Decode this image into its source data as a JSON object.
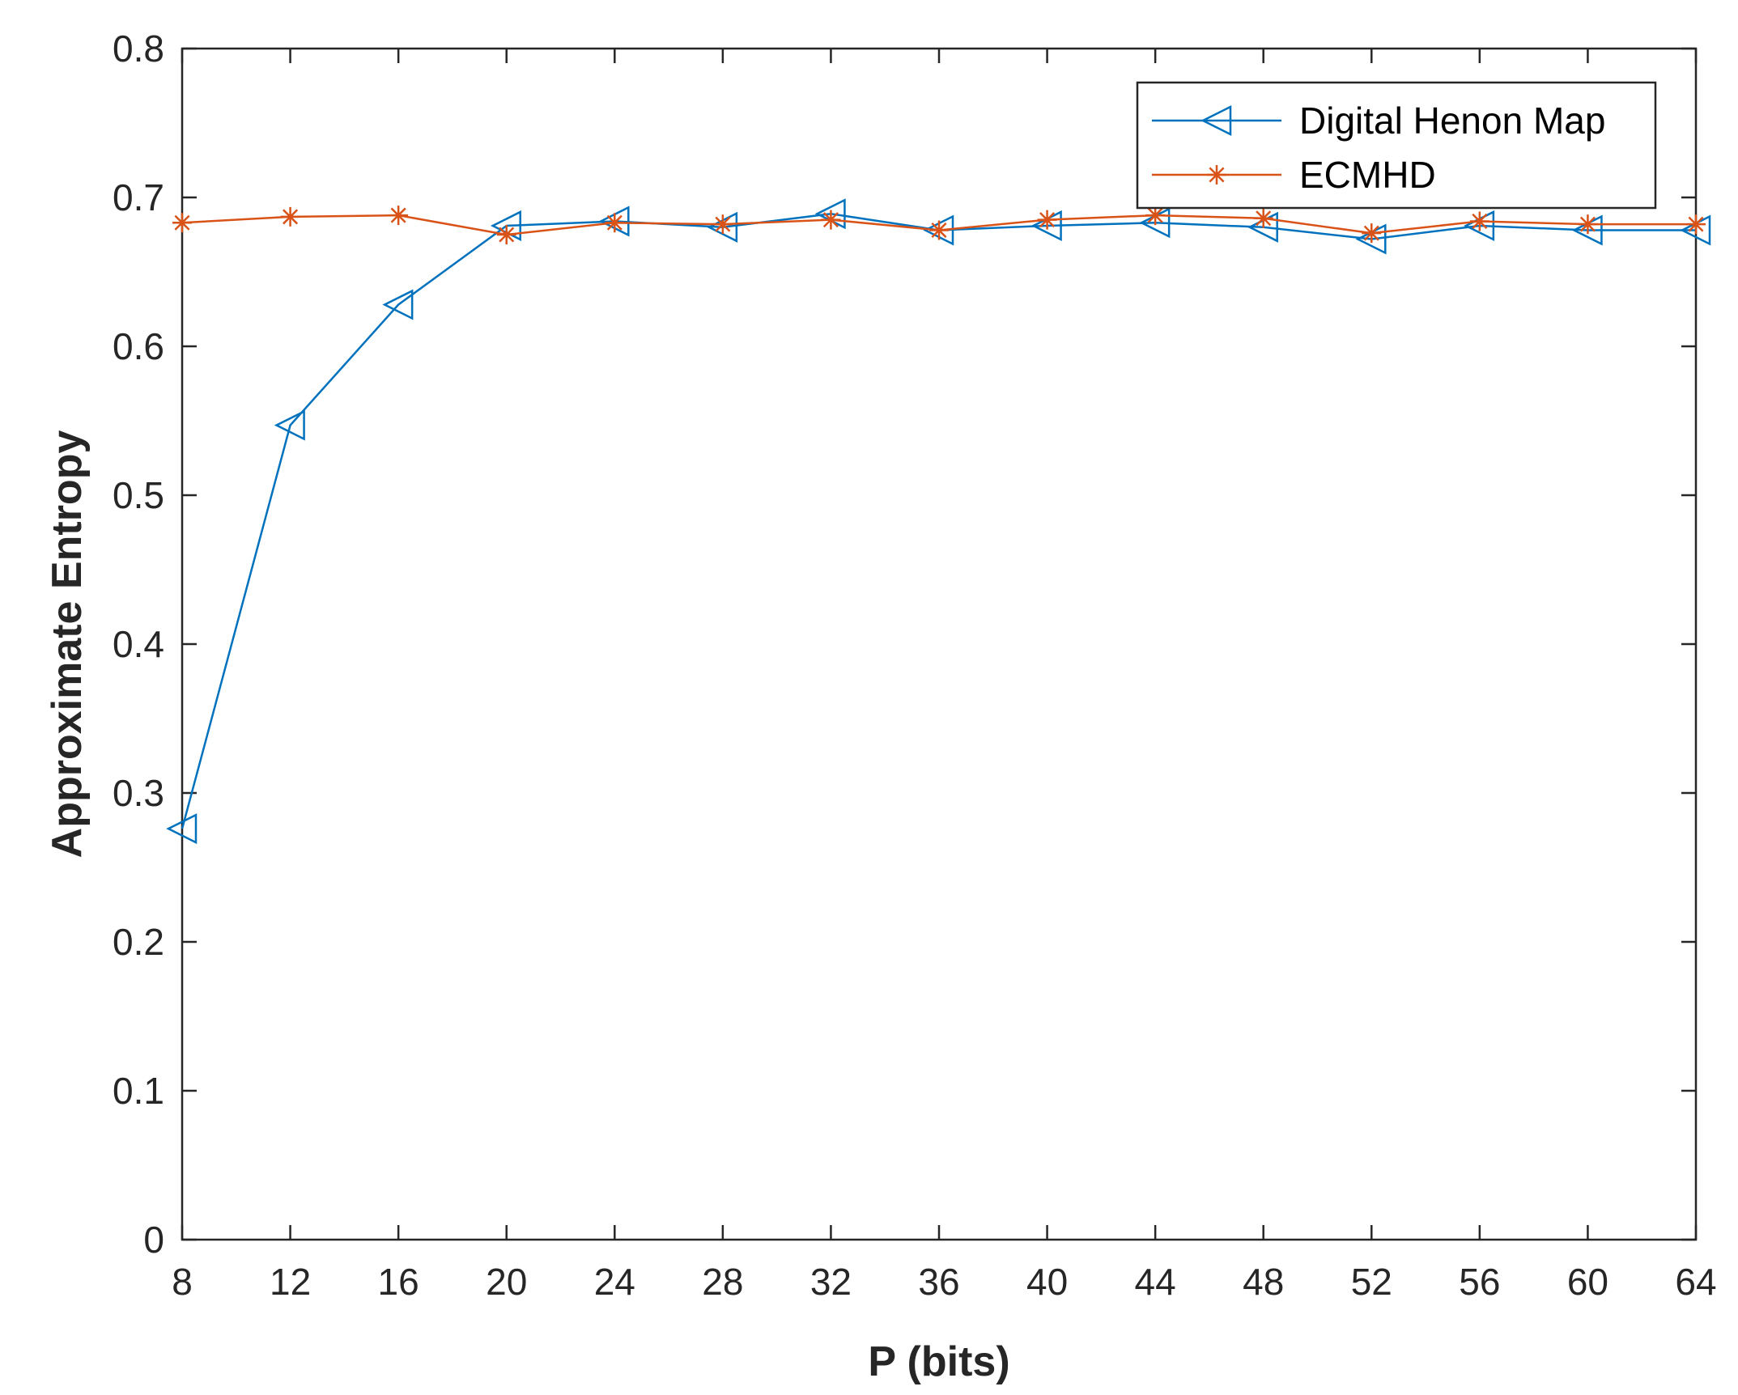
{
  "chart_data": {
    "type": "line",
    "xlabel": "P (bits)",
    "ylabel": "Approximate Entropy",
    "xlim": [
      8,
      64
    ],
    "ylim": [
      0,
      0.8
    ],
    "xticks": [
      8,
      12,
      16,
      20,
      24,
      28,
      32,
      36,
      40,
      44,
      48,
      52,
      56,
      60,
      64
    ],
    "yticks": [
      0,
      0.1,
      0.2,
      0.3,
      0.4,
      0.5,
      0.6,
      0.7,
      0.8
    ],
    "grid": false,
    "legend_position": "top-right",
    "x": [
      8,
      12,
      16,
      20,
      24,
      28,
      32,
      36,
      40,
      44,
      48,
      52,
      56,
      60,
      64
    ],
    "series": [
      {
        "name": "Digital Henon Map",
        "color": "#0072BD",
        "marker": "triangle-left",
        "values": [
          0.276,
          0.547,
          0.628,
          0.681,
          0.684,
          0.68,
          0.689,
          0.678,
          0.681,
          0.683,
          0.68,
          0.672,
          0.681,
          0.678,
          0.678
        ]
      },
      {
        "name": "ECMHD",
        "color": "#D95319",
        "marker": "asterisk",
        "values": [
          0.683,
          0.687,
          0.688,
          0.675,
          0.683,
          0.682,
          0.685,
          0.678,
          0.685,
          0.688,
          0.686,
          0.676,
          0.684,
          0.682,
          0.682
        ]
      }
    ]
  }
}
